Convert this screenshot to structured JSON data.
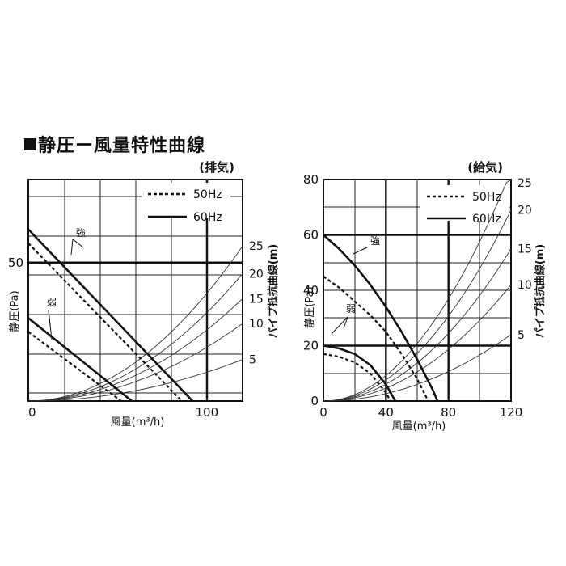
{
  "page_title": "静圧ー風量特性曲線",
  "chart_data": [
    {
      "type": "line",
      "subtitle": "(排気)",
      "xlabel": "風量(m³/h)",
      "ylabel": "静圧(Pa)",
      "y2label": "パイプ抵抗曲線(m)",
      "xlim": [
        0,
        120
      ],
      "ylim": [
        0,
        80
      ],
      "xticks": [
        {
          "v": 0,
          "label": "0"
        },
        {
          "v": 100,
          "label": "100"
        }
      ],
      "yticks": [
        {
          "v": 50,
          "label": "50"
        }
      ],
      "legend": {
        "position": "top-right",
        "entries": [
          {
            "name": "50Hz",
            "style": "dashed"
          },
          {
            "name": "60Hz",
            "style": "solid"
          }
        ]
      },
      "annotations": [
        {
          "text": "強"
        },
        {
          "text": "弱"
        }
      ],
      "series": [
        {
          "freq": "60Hz",
          "mode": "強",
          "x": [
            0,
            92
          ],
          "y": [
            62,
            0
          ]
        },
        {
          "freq": "50Hz",
          "mode": "強",
          "x": [
            0,
            86
          ],
          "y": [
            57,
            0
          ]
        },
        {
          "freq": "60Hz",
          "mode": "弱",
          "x": [
            0,
            58
          ],
          "y": [
            30,
            0
          ]
        },
        {
          "freq": "50Hz",
          "mode": "弱",
          "x": [
            0,
            52
          ],
          "y": [
            25,
            0
          ]
        }
      ],
      "pipe_curves": [
        {
          "label": "25",
          "x": 120,
          "y": 56
        },
        {
          "label": "20",
          "x": 120,
          "y": 46
        },
        {
          "label": "15",
          "x": 120,
          "y": 37
        },
        {
          "label": "10",
          "x": 120,
          "y": 28
        },
        {
          "label": "5",
          "x": 120,
          "y": 15
        }
      ]
    },
    {
      "type": "line",
      "subtitle": "(給気)",
      "xlabel": "風量(m³/h)",
      "ylabel": "静圧(Pa)",
      "y2label": "パイプ抵抗曲線(m)",
      "xlim": [
        0,
        120
      ],
      "ylim": [
        0,
        80
      ],
      "xticks": [
        {
          "v": 0,
          "label": "0"
        },
        {
          "v": 40,
          "label": "40"
        },
        {
          "v": 80,
          "label": "80"
        },
        {
          "v": 120,
          "label": "120"
        }
      ],
      "yticks": [
        {
          "v": 20,
          "label": "20"
        },
        {
          "v": 40,
          "label": "40"
        },
        {
          "v": 60,
          "label": "60"
        },
        {
          "v": 80,
          "label": "80"
        }
      ],
      "legend": {
        "position": "top-right",
        "entries": [
          {
            "name": "50Hz",
            "style": "dashed"
          },
          {
            "name": "60Hz",
            "style": "solid"
          }
        ]
      },
      "annotations": [
        {
          "text": "強"
        },
        {
          "text": "弱"
        }
      ],
      "series": [
        {
          "freq": "60Hz",
          "mode": "強",
          "x": [
            0,
            10,
            20,
            30,
            40,
            50,
            60,
            70,
            73
          ],
          "y": [
            60,
            55,
            49,
            42,
            34,
            25,
            15,
            4,
            0
          ]
        },
        {
          "freq": "50Hz",
          "mode": "強",
          "x": [
            0,
            10,
            20,
            30,
            40,
            50,
            60,
            67
          ],
          "y": [
            45,
            41,
            36,
            31,
            25,
            17,
            8,
            0
          ]
        },
        {
          "freq": "60Hz",
          "mode": "弱",
          "x": [
            0,
            10,
            20,
            30,
            40,
            46
          ],
          "y": [
            20,
            19,
            17,
            13,
            6,
            0
          ]
        },
        {
          "freq": "50Hz",
          "mode": "弱",
          "x": [
            0,
            10,
            20,
            30,
            40,
            43
          ],
          "y": [
            17,
            16,
            14,
            10,
            3,
            0
          ]
        }
      ],
      "pipe_curves": [
        {
          "label": "25",
          "x": 120,
          "y": 83
        },
        {
          "label": "20",
          "x": 120,
          "y": 69
        },
        {
          "label": "15",
          "x": 120,
          "y": 55
        },
        {
          "label": "10",
          "x": 120,
          "y": 42
        },
        {
          "label": "5",
          "x": 120,
          "y": 24
        }
      ]
    }
  ]
}
